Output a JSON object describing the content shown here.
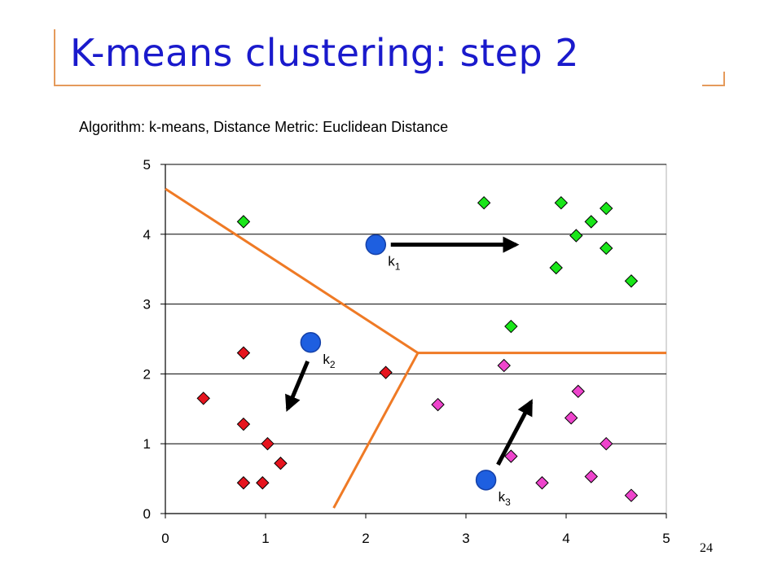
{
  "title": "K-means clustering: step 2",
  "subtitle": "Algorithm: k-means, Distance Metric: Euclidean Distance",
  "page_number": "24",
  "colors": {
    "title": "#1a1acc",
    "frame": "#e59a5b",
    "boundary": "#ef7a25",
    "centroid": "#1e5fe0",
    "green": "#19e619",
    "red": "#e6141e",
    "magenta": "#ee44cc"
  },
  "chart_data": {
    "type": "scatter",
    "title": "",
    "xlabel": "",
    "ylabel": "",
    "xlim": [
      0,
      5
    ],
    "ylim": [
      0,
      5
    ],
    "xticks": [
      "0",
      "1",
      "2",
      "3",
      "4",
      "5"
    ],
    "yticks": [
      "0",
      "1",
      "2",
      "3",
      "4",
      "5"
    ],
    "grid": "horizontal",
    "series": [
      {
        "color": "green",
        "marker": "diamond",
        "points": [
          [
            0.78,
            4.18
          ],
          [
            3.18,
            4.45
          ],
          [
            3.95,
            4.45
          ],
          [
            4.4,
            4.37
          ],
          [
            4.25,
            4.18
          ],
          [
            4.1,
            3.98
          ],
          [
            4.4,
            3.8
          ],
          [
            3.9,
            3.52
          ],
          [
            4.65,
            3.33
          ],
          [
            3.45,
            2.68
          ]
        ]
      },
      {
        "color": "red",
        "marker": "diamond",
        "points": [
          [
            0.78,
            2.3
          ],
          [
            2.2,
            2.02
          ],
          [
            0.38,
            1.65
          ],
          [
            0.78,
            1.28
          ],
          [
            1.02,
            1.0
          ],
          [
            1.15,
            0.72
          ],
          [
            0.78,
            0.44
          ],
          [
            0.97,
            0.44
          ]
        ]
      },
      {
        "color": "magenta",
        "marker": "diamond",
        "points": [
          [
            3.38,
            2.12
          ],
          [
            2.72,
            1.56
          ],
          [
            4.12,
            1.75
          ],
          [
            4.05,
            1.37
          ],
          [
            4.4,
            1.0
          ],
          [
            3.45,
            0.82
          ],
          [
            4.25,
            0.53
          ],
          [
            3.76,
            0.44
          ],
          [
            4.65,
            0.26
          ]
        ]
      }
    ],
    "centroids": [
      {
        "label": "k",
        "subscript": "1",
        "x": 2.1,
        "y": 3.85
      },
      {
        "label": "k",
        "subscript": "2",
        "x": 1.45,
        "y": 2.45
      },
      {
        "label": "k",
        "subscript": "3",
        "x": 3.2,
        "y": 0.48
      }
    ],
    "arrows": [
      {
        "from": [
          2.25,
          3.85
        ],
        "to": [
          3.5,
          3.85
        ]
      },
      {
        "from": [
          1.42,
          2.18
        ],
        "to": [
          1.22,
          1.5
        ]
      },
      {
        "from": [
          3.32,
          0.7
        ],
        "to": [
          3.65,
          1.6
        ]
      }
    ],
    "boundaries": [
      [
        [
          0.0,
          4.65
        ],
        [
          2.52,
          2.3
        ]
      ],
      [
        [
          2.52,
          2.3
        ],
        [
          5.0,
          2.3
        ]
      ],
      [
        [
          2.52,
          2.3
        ],
        [
          1.68,
          0.08
        ]
      ]
    ]
  }
}
